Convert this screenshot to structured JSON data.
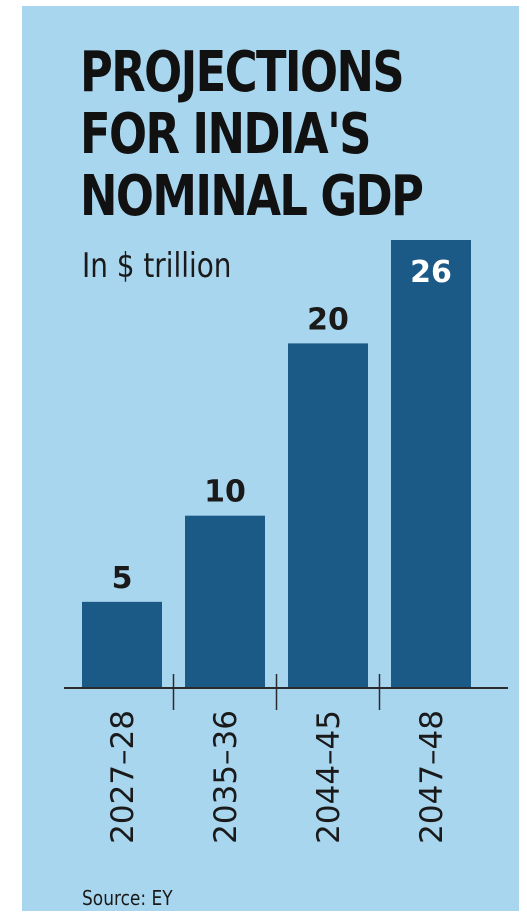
{
  "title_lines": [
    "PROJECTIONS",
    "FOR INDIA'S",
    "NOMINAL GDP"
  ],
  "subtitle": "In $ trillion",
  "source": "Source: EY",
  "colors": {
    "background": "#a9d6ef",
    "bar": "#1b5a86",
    "axis": "#2b2b2b",
    "label_dark": "#1a1a1a",
    "label_light": "#ffffff"
  },
  "chart_data": {
    "type": "bar",
    "title": "PROJECTIONS FOR INDIA'S NOMINAL GDP",
    "ylabel": "In $ trillion",
    "xlabel": "",
    "categories": [
      "2027–28",
      "2035–36",
      "2044–45",
      "2047–48"
    ],
    "values": [
      5,
      10,
      20,
      26
    ],
    "data_labels": [
      "5",
      "10",
      "20",
      "26"
    ],
    "ylim": [
      0,
      26
    ],
    "grid": false,
    "legend": "none"
  }
}
